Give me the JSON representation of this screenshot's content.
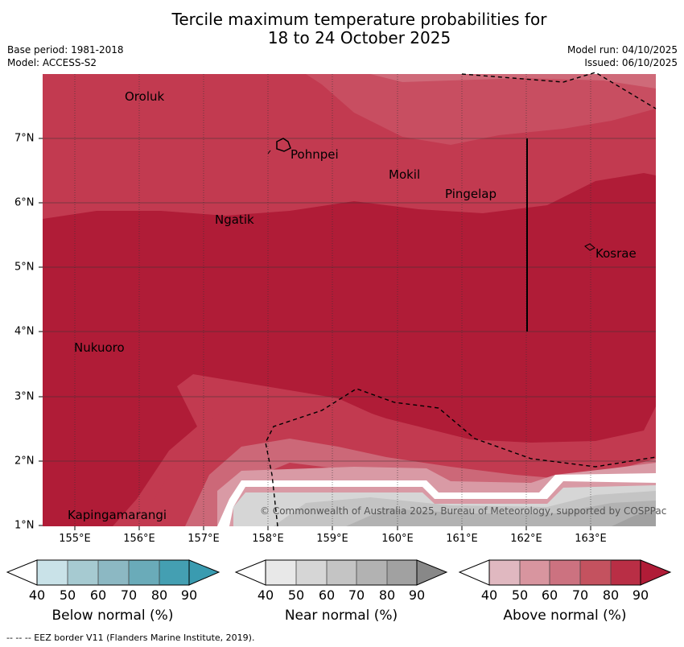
{
  "title_line1": "Tercile maximum temperature probabilities for",
  "title_line2": "18 to 24 October 2025",
  "base_period": "Base period: 1981-2018",
  "model": "Model: ACCESS-S2",
  "model_run": "Model run: 04/10/2025",
  "issued": "Issued: 06/10/2025",
  "lon_labels": [
    "155°E",
    "156°E",
    "157°E",
    "158°E",
    "159°E",
    "160°E",
    "161°E",
    "162°E",
    "163°E"
  ],
  "lat_labels": [
    "7°N",
    "6°N",
    "5°N",
    "4°N",
    "3°N",
    "2°N",
    "1°N"
  ],
  "places": {
    "oroluk": "Oroluk",
    "pohnpei": "Pohnpei",
    "mokil": "Mokil",
    "pingelap": "Pingelap",
    "ngatik": "Ngatik",
    "kosrae": "Kosrae",
    "nukuoro": "Nukuoro",
    "kapingamarangi": "Kapingamarangi"
  },
  "copyright": "© Commonwealth of Australia 2025, Bureau of Meteorology, supported by COSPPac",
  "colorbars": {
    "below": {
      "label": "Below normal (%)",
      "ticks": [
        "40",
        "50",
        "60",
        "70",
        "80",
        "90"
      ],
      "colors": [
        "#ffffff",
        "#c9e2e8",
        "#a6cad1",
        "#8cb8c3",
        "#6aabb9",
        "#449fb2",
        "#3a9bb0"
      ]
    },
    "near": {
      "label": "Near normal (%)",
      "ticks": [
        "40",
        "50",
        "60",
        "70",
        "80",
        "90"
      ],
      "colors": [
        "#ffffff",
        "#e8e8e8",
        "#d6d6d6",
        "#c4c4c4",
        "#b2b2b2",
        "#a1a1a1",
        "#888888"
      ]
    },
    "above": {
      "label": "Above normal (%)",
      "ticks": [
        "40",
        "50",
        "60",
        "70",
        "80",
        "90"
      ],
      "colors": [
        "#ffffff",
        "#e0b8c0",
        "#d8959f",
        "#cc7280",
        "#c4525f",
        "#b92e45",
        "#b01c37"
      ]
    }
  },
  "footnote": "-- -- -- EEZ border V11 (Flanders Marine Institute, 2019)."
}
